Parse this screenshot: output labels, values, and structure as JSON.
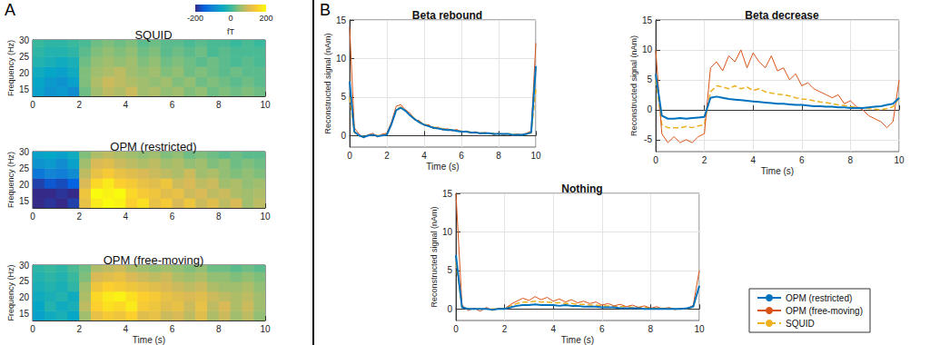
{
  "panel_labels": [
    "A",
    "B"
  ],
  "colorbar": {
    "clim": [
      -200,
      200
    ],
    "ticks": [
      -200,
      0,
      200
    ],
    "label": "fT"
  },
  "chart_data": [
    {
      "type": "heatmap",
      "title": "SQUID",
      "ylabel": "Frequency (Hz)",
      "x_edges": [
        0,
        0.5,
        1,
        1.5,
        2,
        2.5,
        3,
        3.5,
        4,
        4.5,
        5,
        5.5,
        6,
        6.5,
        7,
        7.5,
        8,
        8.5,
        9,
        9.5,
        10
      ],
      "y_edges": [
        13,
        16,
        19,
        22,
        25,
        28,
        30
      ],
      "cells": [
        [
          -60,
          -80,
          -70,
          -90,
          30,
          60,
          80,
          70,
          90,
          60,
          70,
          50,
          60,
          40,
          50,
          30,
          40,
          30,
          40,
          30
        ],
        [
          -50,
          -70,
          -80,
          -60,
          40,
          70,
          90,
          80,
          70,
          60,
          50,
          60,
          40,
          50,
          30,
          40,
          30,
          20,
          30,
          20
        ],
        [
          -40,
          -50,
          -60,
          -40,
          40,
          60,
          70,
          80,
          60,
          50,
          60,
          40,
          50,
          30,
          40,
          30,
          20,
          30,
          20,
          20
        ],
        [
          -20,
          -30,
          -40,
          -30,
          30,
          50,
          60,
          50,
          60,
          40,
          50,
          30,
          40,
          30,
          20,
          30,
          20,
          10,
          20,
          10
        ],
        [
          -10,
          -20,
          -20,
          -10,
          20,
          40,
          50,
          40,
          50,
          30,
          40,
          20,
          30,
          20,
          30,
          10,
          20,
          10,
          10,
          10
        ],
        [
          0,
          -10,
          -10,
          0,
          10,
          30,
          40,
          30,
          40,
          20,
          30,
          20,
          20,
          10,
          20,
          10,
          10,
          0,
          10,
          0
        ]
      ],
      "xlim": [
        0,
        10
      ],
      "xticks": [
        0,
        2,
        4,
        6,
        8,
        10
      ],
      "ylim": [
        13,
        30
      ],
      "yticks": [
        15,
        20,
        25,
        30
      ]
    },
    {
      "type": "heatmap",
      "title": "OPM (restricted)",
      "ylabel": "Frequency (Hz)",
      "x_edges": [
        0,
        0.5,
        1,
        1.5,
        2,
        2.5,
        3,
        3.5,
        4,
        4.5,
        5,
        5.5,
        6,
        6.5,
        7,
        7.5,
        8,
        8.5,
        9,
        9.5,
        10
      ],
      "y_edges": [
        13,
        16,
        19,
        22,
        25,
        28,
        30
      ],
      "cells": [
        [
          -200,
          -190,
          -200,
          -180,
          120,
          180,
          200,
          190,
          150,
          170,
          120,
          140,
          100,
          130,
          90,
          110,
          80,
          100,
          60,
          80
        ],
        [
          -200,
          -200,
          -190,
          -200,
          130,
          200,
          190,
          200,
          160,
          140,
          130,
          110,
          120,
          90,
          100,
          80,
          90,
          70,
          60,
          70
        ],
        [
          -180,
          -160,
          -170,
          -150,
          100,
          160,
          180,
          150,
          140,
          120,
          110,
          130,
          90,
          100,
          80,
          90,
          60,
          70,
          50,
          60
        ],
        [
          -120,
          -100,
          -110,
          -90,
          80,
          120,
          140,
          120,
          110,
          100,
          90,
          80,
          70,
          90,
          60,
          70,
          50,
          40,
          50,
          40
        ],
        [
          -80,
          -70,
          -90,
          -60,
          60,
          100,
          110,
          90,
          80,
          70,
          80,
          60,
          70,
          50,
          60,
          40,
          50,
          30,
          40,
          30
        ],
        [
          -60,
          -50,
          -60,
          -40,
          40,
          70,
          80,
          70,
          60,
          50,
          60,
          40,
          50,
          30,
          40,
          30,
          20,
          30,
          20,
          20
        ]
      ],
      "xlim": [
        0,
        10
      ],
      "xticks": [
        0,
        2,
        4,
        6,
        8,
        10
      ],
      "ylim": [
        13,
        30
      ],
      "yticks": [
        15,
        20,
        25,
        30
      ]
    },
    {
      "type": "heatmap",
      "title": "OPM (free-moving)",
      "ylabel": "Frequency (Hz)",
      "xlabel": "Time (s)",
      "x_edges": [
        0,
        0.5,
        1,
        1.5,
        2,
        2.5,
        3,
        3.5,
        4,
        4.5,
        5,
        5.5,
        6,
        6.5,
        7,
        7.5,
        8,
        8.5,
        9,
        9.5,
        10
      ],
      "y_edges": [
        13,
        16,
        19,
        22,
        25,
        28,
        30
      ],
      "cells": [
        [
          -60,
          -40,
          -30,
          -50,
          60,
          120,
          140,
          130,
          150,
          110,
          120,
          90,
          100,
          80,
          110,
          70,
          90,
          60,
          80,
          50
        ],
        [
          -50,
          -20,
          -40,
          -30,
          80,
          150,
          170,
          160,
          180,
          140,
          130,
          110,
          120,
          90,
          120,
          80,
          100,
          70,
          90,
          60
        ],
        [
          -40,
          -30,
          -20,
          -40,
          70,
          160,
          180,
          190,
          170,
          150,
          140,
          120,
          110,
          100,
          110,
          90,
          80,
          70,
          80,
          60
        ],
        [
          -30,
          -20,
          -30,
          -10,
          60,
          130,
          150,
          140,
          130,
          120,
          110,
          100,
          90,
          80,
          90,
          70,
          60,
          60,
          70,
          50
        ],
        [
          -20,
          -10,
          -20,
          0,
          40,
          100,
          110,
          120,
          100,
          90,
          80,
          90,
          70,
          60,
          70,
          50,
          50,
          40,
          50,
          40
        ],
        [
          -10,
          0,
          -10,
          10,
          30,
          70,
          80,
          90,
          70,
          60,
          50,
          60,
          50,
          40,
          50,
          30,
          30,
          20,
          30,
          20
        ]
      ],
      "xlim": [
        0,
        10
      ],
      "xticks": [
        0,
        2,
        4,
        6,
        8,
        10
      ],
      "ylim": [
        13,
        30
      ],
      "yticks": [
        15,
        20,
        25,
        30
      ]
    },
    {
      "type": "line",
      "title": "Beta rebound",
      "xlabel": "Time (s)",
      "ylabel": "Reconstructed signal (nAm)",
      "x": [
        0,
        0.25,
        0.5,
        0.75,
        1,
        1.25,
        1.5,
        1.75,
        2,
        2.25,
        2.5,
        2.75,
        3,
        3.25,
        3.5,
        3.75,
        4,
        4.25,
        4.5,
        4.75,
        5,
        5.25,
        5.5,
        5.75,
        6,
        6.25,
        6.5,
        6.75,
        7,
        7.25,
        7.5,
        7.75,
        8,
        8.25,
        8.5,
        8.75,
        9,
        9.25,
        9.5,
        9.75,
        10
      ],
      "series": [
        {
          "name": "OPM (restricted)",
          "color": "#0072bd",
          "line_style": "solid",
          "values": [
            7,
            0.5,
            0,
            -0.2,
            0,
            0.1,
            -0.1,
            0,
            0.1,
            1.5,
            3.3,
            3.6,
            3.2,
            2.6,
            2.1,
            1.7,
            1.4,
            1.2,
            1.0,
            0.9,
            0.8,
            0.7,
            0.7,
            0.6,
            0.5,
            0.5,
            0.4,
            0.4,
            0.3,
            0.3,
            0.3,
            0.2,
            0.2,
            0.2,
            0.2,
            0.1,
            0.1,
            0.1,
            0.2,
            0.4,
            9
          ]
        },
        {
          "name": "OPM (free-moving)",
          "color": "#d95319",
          "line_style": "solid",
          "values": [
            14,
            1,
            0.2,
            -0.3,
            0.1,
            0.3,
            -0.2,
            0.2,
            0.3,
            1.8,
            3.8,
            4,
            3.3,
            2.9,
            2.0,
            1.9,
            1.3,
            1.4,
            0.9,
            1.1,
            0.7,
            0.9,
            0.6,
            0.8,
            0.4,
            0.6,
            0.3,
            0.5,
            0.2,
            0.4,
            0.3,
            0.1,
            0.3,
            0.1,
            0.2,
            0.0,
            0.2,
            0.1,
            0.3,
            0.6,
            12
          ]
        },
        {
          "name": "SQUID",
          "color": "#edb120",
          "line_style": "dashed",
          "values": [
            5,
            0.4,
            0,
            -0.1,
            0,
            0.1,
            0,
            0,
            0.2,
            1.6,
            3.4,
            3.7,
            3.3,
            2.7,
            2.2,
            1.8,
            1.5,
            1.3,
            1.1,
            1.0,
            0.9,
            0.8,
            0.7,
            0.6,
            0.6,
            0.5,
            0.5,
            0.4,
            0.4,
            0.3,
            0.3,
            0.3,
            0.2,
            0.2,
            0.2,
            0.2,
            0.1,
            0.1,
            0.2,
            0.3,
            6
          ]
        }
      ],
      "xlim": [
        0,
        10
      ],
      "xticks": [
        0,
        2,
        4,
        6,
        8,
        10
      ],
      "ylim": [
        -1.5,
        15
      ],
      "yticks": [
        0,
        5,
        10,
        15
      ],
      "grid": true,
      "legend": "lower right"
    },
    {
      "type": "line",
      "title": "Beta decrease",
      "xlabel": "Time (s)",
      "ylabel": "Reconstructed signal (nAm)",
      "x": [
        0,
        0.25,
        0.5,
        0.75,
        1,
        1.25,
        1.5,
        1.75,
        2,
        2.25,
        2.5,
        2.75,
        3,
        3.25,
        3.5,
        3.75,
        4,
        4.25,
        4.5,
        4.75,
        5,
        5.25,
        5.5,
        5.75,
        6,
        6.25,
        6.5,
        6.75,
        7,
        7.25,
        7.5,
        7.75,
        8,
        8.25,
        8.5,
        8.75,
        9,
        9.25,
        9.5,
        9.75,
        10
      ],
      "series": [
        {
          "name": "OPM (restricted)",
          "color": "#0072bd",
          "line_style": "solid",
          "values": [
            6,
            -1,
            -1.5,
            -1.5,
            -1.4,
            -1.5,
            -1.4,
            -1.3,
            -1.2,
            2.0,
            2.2,
            2.0,
            1.8,
            1.7,
            1.6,
            1.5,
            1.4,
            1.3,
            1.2,
            1.1,
            1.0,
            1.0,
            0.9,
            0.8,
            0.8,
            0.7,
            0.6,
            0.6,
            0.5,
            0.5,
            0.4,
            0.4,
            0.3,
            0.3,
            0.3,
            0.4,
            0.5,
            0.6,
            0.8,
            1.0,
            2
          ]
        },
        {
          "name": "OPM (free-moving)",
          "color": "#d95319",
          "line_style": "solid",
          "values": [
            10,
            -4,
            -5.5,
            -4.5,
            -5.5,
            -5,
            -5.5,
            -4.5,
            -4,
            7,
            8,
            6.5,
            9,
            8,
            10,
            7,
            9.5,
            8,
            7,
            9,
            6.5,
            7,
            5,
            6,
            4,
            4.5,
            3.5,
            3,
            2.5,
            2,
            2.5,
            1,
            1.5,
            0.5,
            0,
            -1,
            -1.5,
            -2,
            -3,
            -2,
            5
          ]
        },
        {
          "name": "SQUID",
          "color": "#edb120",
          "line_style": "dashed",
          "values": [
            5,
            -2.5,
            -3,
            -3,
            -3,
            -2.8,
            -3,
            -2.7,
            -2.5,
            3,
            4,
            3.8,
            3.5,
            4,
            3.5,
            3.8,
            3.2,
            3.5,
            3,
            2.8,
            2.6,
            2.5,
            2.3,
            2,
            1.8,
            1.7,
            1.5,
            1.3,
            1.2,
            1,
            0.8,
            0.7,
            0.5,
            0.4,
            0.3,
            0.2,
            0.1,
            0,
            0.2,
            0.5,
            2
          ]
        }
      ],
      "xlim": [
        0,
        10
      ],
      "xticks": [
        0,
        2,
        4,
        6,
        8,
        10
      ],
      "ylim": [
        -7,
        15
      ],
      "yticks": [
        -5,
        0,
        5,
        10,
        15
      ],
      "grid": true,
      "legend": "lower right"
    },
    {
      "type": "line",
      "title": "Nothing",
      "xlabel": "Time (s)",
      "ylabel": "Reconstructed signal (nAm)",
      "x": [
        0,
        0.25,
        0.5,
        0.75,
        1,
        1.25,
        1.5,
        1.75,
        2,
        2.25,
        2.5,
        2.75,
        3,
        3.25,
        3.5,
        3.75,
        4,
        4.25,
        4.5,
        4.75,
        5,
        5.25,
        5.5,
        5.75,
        6,
        6.25,
        6.5,
        6.75,
        7,
        7.25,
        7.5,
        7.75,
        8,
        8.25,
        8.5,
        8.75,
        9,
        9.25,
        9.5,
        9.75,
        10
      ],
      "series": [
        {
          "name": "OPM (restricted)",
          "color": "#0072bd",
          "line_style": "solid",
          "values": [
            7,
            0.2,
            0,
            0,
            0,
            0,
            -0.1,
            0,
            0,
            0.2,
            0.4,
            0.5,
            0.5,
            0.6,
            0.5,
            0.5,
            0.5,
            0.4,
            0.5,
            0.4,
            0.4,
            0.3,
            0.3,
            0.3,
            0.2,
            0.2,
            0.2,
            0.1,
            0.1,
            0.1,
            0.1,
            0,
            0,
            0,
            0,
            0,
            0,
            0,
            0.1,
            0.3,
            3
          ]
        },
        {
          "name": "OPM (free-moving)",
          "color": "#d95319",
          "line_style": "solid",
          "values": [
            15,
            0.5,
            -0.2,
            0.1,
            -0.3,
            0.2,
            -0.2,
            0.1,
            0,
            0.6,
            1.0,
            1.4,
            1.1,
            1.6,
            1.2,
            1.5,
            1.0,
            1.3,
            0.9,
            1.2,
            0.8,
            1.0,
            0.7,
            0.9,
            0.5,
            0.7,
            0.4,
            0.6,
            0.3,
            0.5,
            0.2,
            0.4,
            0.1,
            0.3,
            0,
            0.2,
            -0.1,
            0.1,
            0,
            0.5,
            5
          ]
        },
        {
          "name": "SQUID",
          "color": "#edb120",
          "line_style": "dashed",
          "values": [
            6,
            0.3,
            0,
            0,
            0,
            0,
            0,
            0,
            0.1,
            0.4,
            0.7,
            0.9,
            0.9,
            1.0,
            0.9,
            0.9,
            0.8,
            0.8,
            0.7,
            0.7,
            0.6,
            0.6,
            0.5,
            0.5,
            0.4,
            0.4,
            0.3,
            0.3,
            0.3,
            0.2,
            0.2,
            0.2,
            0.1,
            0.1,
            0.1,
            0.1,
            0,
            0,
            0.1,
            0.3,
            3
          ]
        }
      ],
      "xlim": [
        0,
        10
      ],
      "xticks": [
        0,
        2,
        4,
        6,
        8,
        10
      ],
      "ylim": [
        -1.5,
        15
      ],
      "yticks": [
        0,
        5,
        10,
        15
      ],
      "grid": true,
      "legend": "lower right"
    }
  ]
}
